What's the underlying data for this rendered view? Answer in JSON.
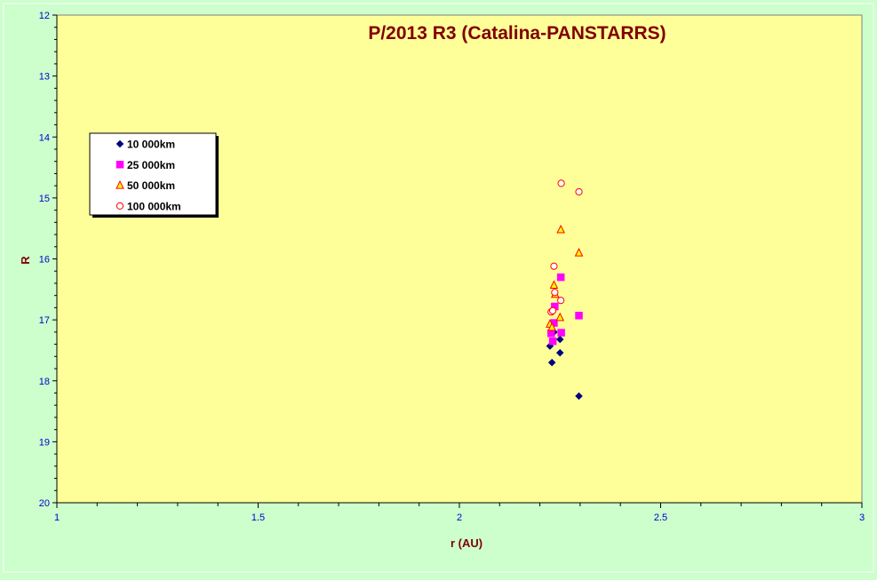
{
  "chart_data": {
    "type": "scatter",
    "title": "P/2013 R3 (Catalina-PANSTARRS)",
    "xlabel": "r (AU)",
    "ylabel": "R",
    "xlim": [
      1,
      3
    ],
    "ylim": [
      12,
      20
    ],
    "y_inverted": true,
    "x_ticks": [
      "1",
      "1.5",
      "2",
      "2.5",
      "3"
    ],
    "x_tick_values": [
      1,
      1.5,
      2,
      2.5,
      3
    ],
    "y_ticks": [
      "12",
      "13",
      "14",
      "15",
      "16",
      "17",
      "18",
      "19",
      "20"
    ],
    "y_tick_values": [
      12,
      13,
      14,
      15,
      16,
      17,
      18,
      19,
      20
    ],
    "grid": false,
    "legend_position": "upper-left",
    "colors": {
      "plot_background": "#ffff99",
      "page_background": "#ccffcc",
      "title": "#800000",
      "axis_label": "#800000",
      "tick_label": "#0000cc"
    },
    "series": [
      {
        "name": "10 000km",
        "marker": "diamond",
        "color": "#000080",
        "points": [
          [
            2.225,
            17.43
          ],
          [
            2.23,
            17.7
          ],
          [
            2.235,
            17.2
          ],
          [
            2.25,
            17.32
          ],
          [
            2.25,
            17.54
          ],
          [
            2.297,
            18.25
          ]
        ]
      },
      {
        "name": "25 000km",
        "marker": "square",
        "color": "#ff00ff",
        "points": [
          [
            2.228,
            17.22
          ],
          [
            2.232,
            17.35
          ],
          [
            2.235,
            17.05
          ],
          [
            2.237,
            16.78
          ],
          [
            2.252,
            16.3
          ],
          [
            2.253,
            17.21
          ],
          [
            2.297,
            16.93
          ]
        ]
      },
      {
        "name": "50 000km",
        "marker": "triangle",
        "color": "#ff0000",
        "fill": "#ffff00",
        "points": [
          [
            2.225,
            17.07
          ],
          [
            2.23,
            17.12
          ],
          [
            2.235,
            16.43
          ],
          [
            2.238,
            16.58
          ],
          [
            2.25,
            16.96
          ],
          [
            2.252,
            15.52
          ],
          [
            2.297,
            15.9
          ]
        ]
      },
      {
        "name": "100 000km",
        "marker": "circle",
        "color": "#ff0000",
        "fill": "#ffffff",
        "points": [
          [
            2.228,
            16.87
          ],
          [
            2.232,
            16.85
          ],
          [
            2.235,
            16.12
          ],
          [
            2.237,
            16.55
          ],
          [
            2.252,
            16.68
          ],
          [
            2.253,
            14.76
          ],
          [
            2.297,
            14.9
          ]
        ]
      }
    ]
  }
}
